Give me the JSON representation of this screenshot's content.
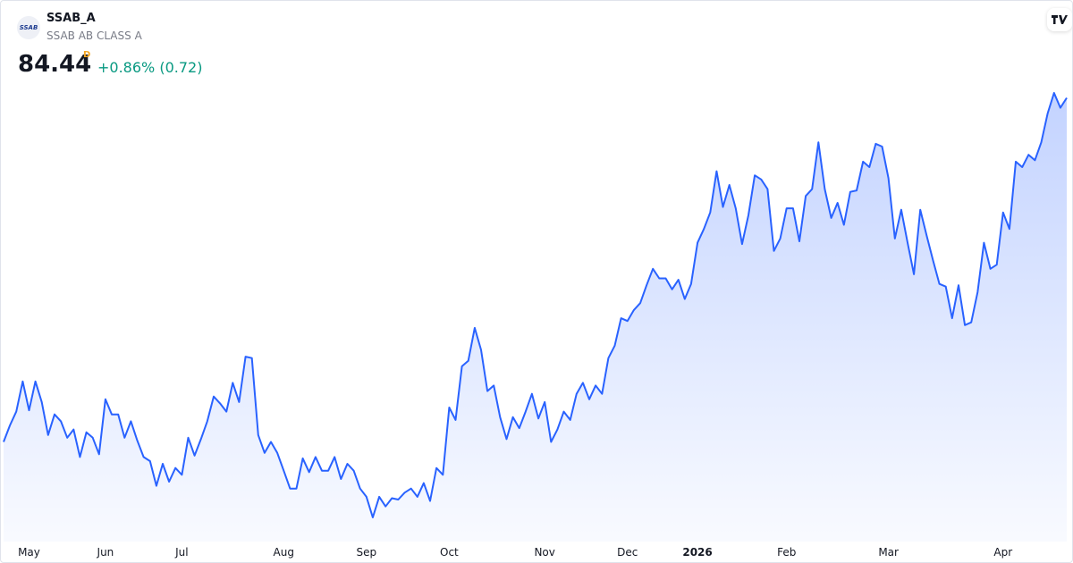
{
  "header": {
    "logo": "SSAB",
    "symbol": "SSAB_A",
    "name": "SSAB AB CLASS A",
    "price": "84.44",
    "period": "D",
    "change": "+0.86% (0.72)"
  },
  "chart_data": {
    "type": "area",
    "color": "#2962ff",
    "values": [
      59.4,
      60.6,
      61.6,
      63.8,
      61.7,
      63.8,
      62.3,
      59.9,
      61.4,
      60.9,
      59.7,
      60.3,
      58.3,
      60.1,
      59.7,
      58.5,
      62.5,
      61.4,
      61.4,
      59.7,
      60.9,
      59.5,
      58.3,
      58.0,
      56.2,
      57.8,
      56.5,
      57.5,
      57.0,
      59.7,
      58.4,
      59.6,
      60.9,
      62.7,
      62.2,
      61.6,
      63.7,
      62.3,
      65.6,
      65.5,
      59.9,
      58.6,
      59.4,
      58.6,
      57.3,
      56.0,
      56.0,
      58.2,
      57.2,
      58.3,
      57.3,
      57.3,
      58.3,
      56.7,
      57.8,
      57.3,
      56.0,
      55.4,
      53.9,
      55.4,
      54.7,
      55.3,
      55.2,
      55.7,
      56.0,
      55.4,
      56.4,
      55.1,
      57.5,
      57.0,
      61.9,
      61.0,
      64.9,
      65.3,
      67.7,
      66.1,
      63.1,
      63.5,
      61.2,
      59.6,
      61.2,
      60.4,
      61.6,
      62.9,
      61.1,
      62.3,
      59.4,
      60.3,
      61.6,
      61.0,
      62.9,
      63.7,
      62.5,
      63.5,
      62.9,
      65.5,
      66.4,
      68.4,
      68.2,
      69.0,
      69.5,
      70.8,
      72.0,
      71.3,
      71.3,
      70.5,
      71.2,
      69.8,
      70.9,
      73.9,
      74.9,
      76.1,
      79.1,
      76.5,
      78.1,
      76.4,
      73.8,
      75.9,
      78.8,
      78.5,
      77.8,
      73.3,
      74.2,
      76.4,
      76.4,
      74.0,
      77.3,
      77.8,
      81.2,
      77.8,
      75.7,
      76.8,
      75.2,
      77.6,
      77.7,
      79.8,
      79.4,
      81.1,
      80.9,
      78.6,
      74.2,
      76.3,
      73.9,
      71.6,
      76.3,
      74.4,
      72.6,
      70.9,
      70.7,
      68.4,
      70.8,
      67.9,
      68.1,
      70.3,
      73.9,
      72.0,
      72.3,
      76.1,
      74.9,
      79.8,
      79.4,
      80.3,
      79.9,
      81.2,
      83.3,
      84.8,
      83.72,
      84.44
    ],
    "xticks": [
      {
        "value": 4,
        "label": "May"
      },
      {
        "value": 16,
        "label": "Jun"
      },
      {
        "value": 28,
        "label": "Jul"
      },
      {
        "value": 44,
        "label": "Aug"
      },
      {
        "value": 57,
        "label": "Sep"
      },
      {
        "value": 70,
        "label": "Oct"
      },
      {
        "value": 85,
        "label": "Nov"
      },
      {
        "value": 98,
        "label": "Dec"
      },
      {
        "value": 109,
        "label": "2026",
        "bold": true
      },
      {
        "value": 123,
        "label": "Feb"
      },
      {
        "value": 139,
        "label": "Mar"
      },
      {
        "value": 157,
        "label": "Apr"
      }
    ]
  }
}
